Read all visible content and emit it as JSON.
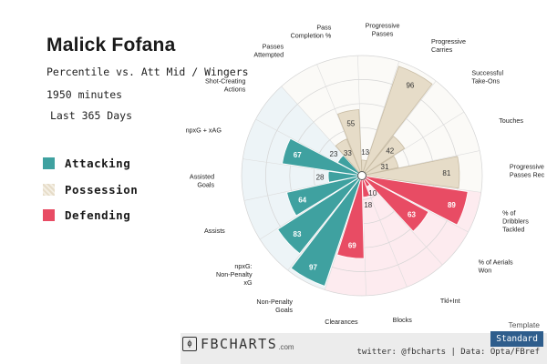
{
  "header": {
    "player_name": "Malick Fofana",
    "comparison": "Percentile vs. Att Mid / Wingers",
    "minutes": "1950 minutes",
    "period": "Last 365 Days"
  },
  "legend": [
    {
      "label": "Attacking",
      "color": "#3fa1a0"
    },
    {
      "label": "Possession",
      "color": "#e6dcc8"
    },
    {
      "label": "Defending",
      "color": "#e84c64"
    }
  ],
  "colors": {
    "attacking": "#3fa1a0",
    "possession": "#e6dcc8",
    "defending": "#e84c64",
    "bg_attacking": "#edf4f7",
    "bg_possession": "#fbfaf7",
    "bg_defending": "#fdebef"
  },
  "chart_data": {
    "type": "radar",
    "scale": [
      0,
      100
    ],
    "series": [
      {
        "category": "Attacking",
        "metrics": [
          {
            "label": "Non-Penalty Goals",
            "value": 97
          },
          {
            "label": "npxG: Non-Penalty xG",
            "value": 83
          },
          {
            "label": "Assists",
            "value": 64
          },
          {
            "label": "Assisted Goals",
            "value": 28
          },
          {
            "label": "npxG + xAG",
            "value": 67
          },
          {
            "label": "Shot-Creating Actions",
            "value": 23
          }
        ]
      },
      {
        "category": "Possession",
        "metrics": [
          {
            "label": "Passes Attempted",
            "value": 33
          },
          {
            "label": "Pass Completion %",
            "value": 55
          },
          {
            "label": "Progressive Passes",
            "value": 13
          },
          {
            "label": "Progressive Carries",
            "value": 96
          },
          {
            "label": "Successful Take-Ons",
            "value": 42
          },
          {
            "label": "Touches",
            "value": 31
          },
          {
            "label": "Progressive Passes Rec",
            "value": 81
          }
        ]
      },
      {
        "category": "Defending",
        "metrics": [
          {
            "label": "% of Dribblers Tackled",
            "value": 89
          },
          {
            "label": "% of Aerials Won",
            "value": 63
          },
          {
            "label": "Tkl+Int",
            "value": 10
          },
          {
            "label": "Blocks",
            "value": 18
          },
          {
            "label": "Clearances",
            "value": 69
          }
        ]
      }
    ]
  },
  "footer": {
    "brand": "FBCHARTS",
    "brand_suffix": ".com",
    "credit": "twitter: @fbcharts | Data: Opta/FBref",
    "template_label": "Template",
    "template_value": "Standard"
  }
}
